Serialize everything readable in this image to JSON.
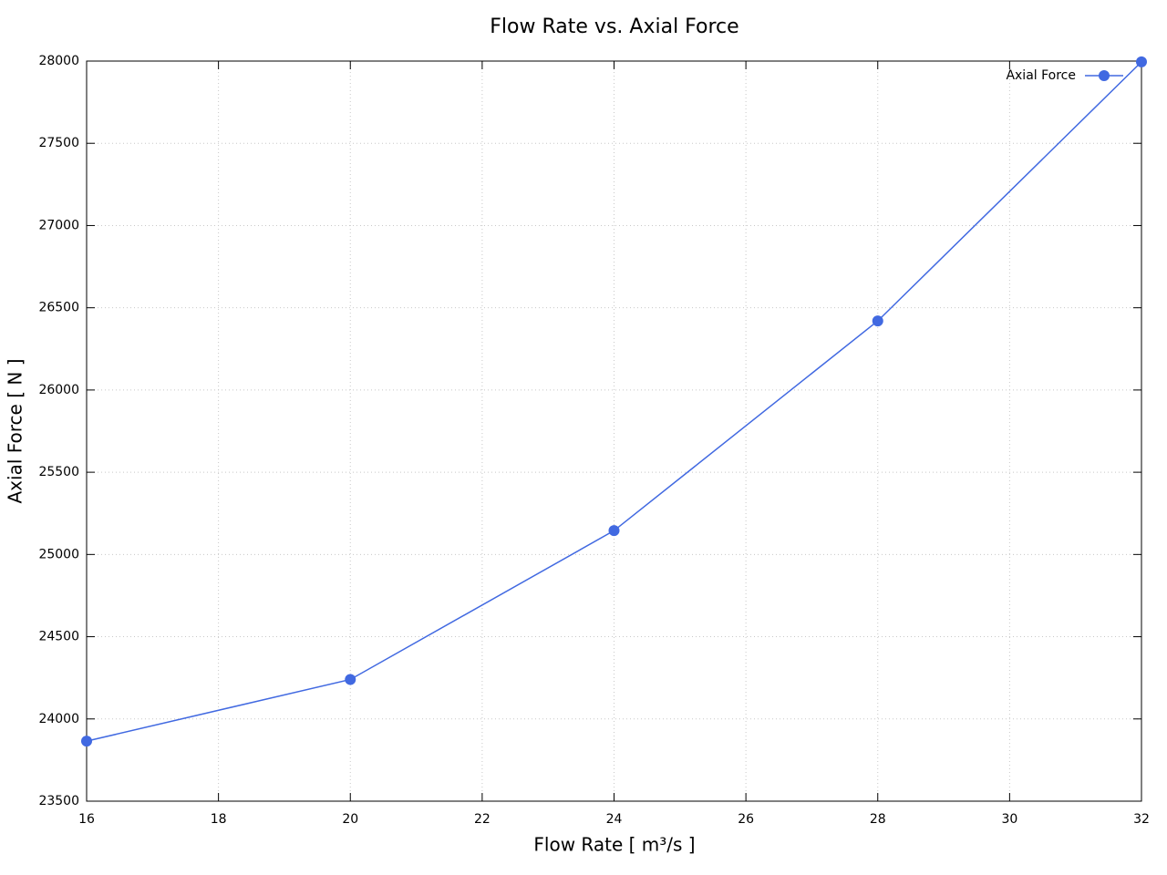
{
  "chart_data": {
    "type": "line",
    "title": "Flow Rate vs. Axial Force",
    "xlabel": "Flow Rate [ m³/s ]",
    "ylabel": "Axial Force [ N ]",
    "x": [
      16,
      20,
      24,
      28,
      32
    ],
    "series": [
      {
        "name": "Axial Force",
        "color": "#4169e1",
        "values": [
          23865,
          24240,
          25145,
          26420,
          27995
        ]
      }
    ],
    "xlim": [
      16,
      32
    ],
    "xticks": [
      16,
      18,
      20,
      22,
      24,
      26,
      28,
      30,
      32
    ],
    "ylim": [
      23500,
      28000
    ],
    "yticks": [
      23500,
      24000,
      24500,
      25000,
      25500,
      26000,
      26500,
      27000,
      27500,
      28000
    ],
    "grid": true,
    "legend": "top-right"
  }
}
